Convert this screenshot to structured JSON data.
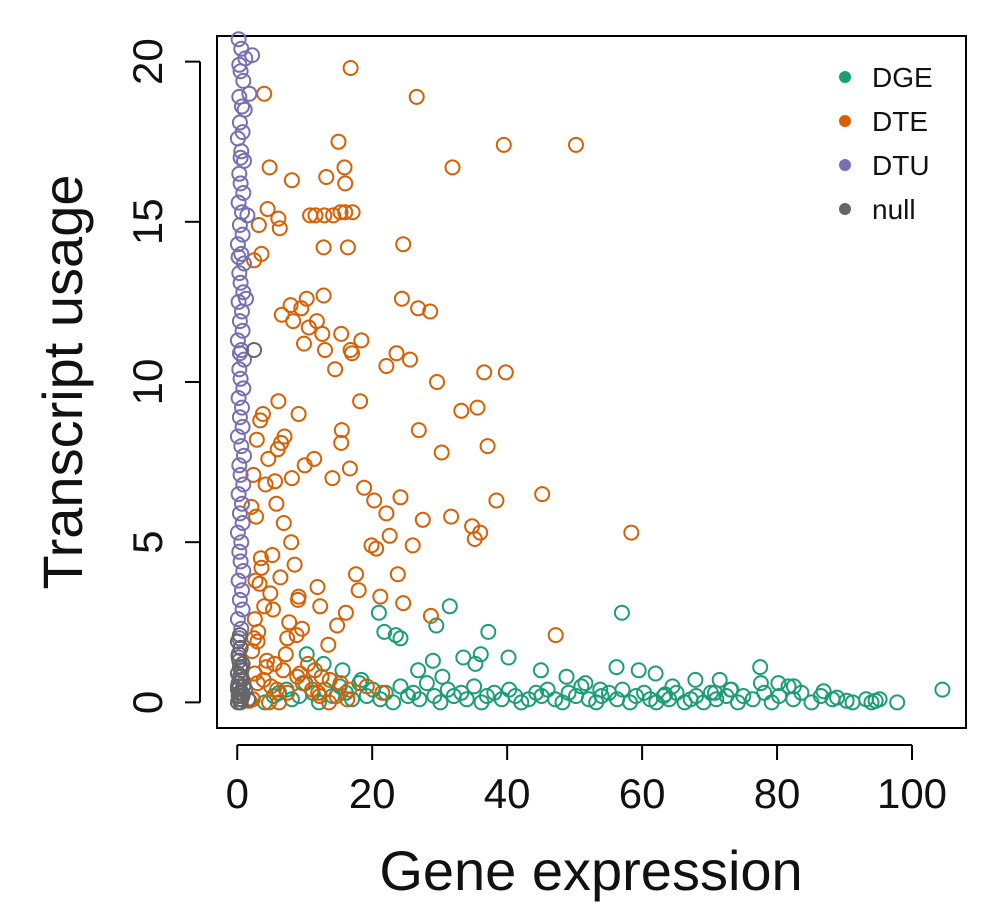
{
  "chart_data": {
    "type": "scatter",
    "title": "",
    "xlabel": "Gene expression",
    "ylabel": "Transcript usage",
    "xlim": [
      -3,
      108
    ],
    "ylim": [
      -0.8,
      20.8
    ],
    "xticks": [
      0,
      20,
      40,
      60,
      80,
      100
    ],
    "yticks": [
      0,
      5,
      10,
      15,
      20
    ],
    "xtick_labels": [
      "0",
      "20",
      "40",
      "60",
      "80",
      "100"
    ],
    "ytick_labels": [
      "0",
      "5",
      "10",
      "15",
      "20"
    ],
    "grid": false,
    "legend_position": "top-right",
    "series": [
      {
        "name": "DGE",
        "color": "#1b9e77",
        "marker": "open-circle",
        "x": [
          104.5,
          97.8,
          95.2,
          94.6,
          94.0,
          91.2,
          88.2,
          86.5,
          85.1,
          83.6,
          82.4,
          81.7,
          80.3,
          79.2,
          78.1,
          77.6,
          76.4,
          75.0,
          74.2,
          73.1,
          72.5,
          71.0,
          70.2,
          69.1,
          68.0,
          67.2,
          66.3,
          65.1,
          64.0,
          63.2,
          62.1,
          61.2,
          60.3,
          59.1,
          58.2,
          57.1,
          56.3,
          55.1,
          54.0,
          53.2,
          52.1,
          51.0,
          50.2,
          49.1,
          48.2,
          47.1,
          46.0,
          45.1,
          44.3,
          43.2,
          42.1,
          41.2,
          40.3,
          39.2,
          38.1,
          37.0,
          36.2,
          35.1,
          34.0,
          33.2,
          32.1,
          31.2,
          30.1,
          29.2,
          28.1,
          27.0,
          26.1,
          25.3,
          24.2,
          23.1,
          22.0,
          21.2,
          20.1,
          19.2,
          18.1,
          17.0,
          16.1,
          15.2,
          14.1,
          13.0,
          12.1,
          11.2,
          10.1,
          9.2,
          8.1,
          7.3,
          6.2,
          5.4,
          4.1,
          21.0,
          21.8,
          23.5,
          24.2,
          29.5,
          31.5,
          37.2,
          29.0,
          33.5,
          36.1,
          40.2,
          45.0,
          57.0,
          56.2,
          59.5,
          62.0,
          64.5,
          71.5,
          73.2,
          77.5,
          80.2,
          82.5,
          63.4,
          26.8,
          30.4,
          35.3,
          15.6,
          18.4,
          10.3,
          12.8,
          48.8,
          51.6,
          53.8,
          67.9,
          70.8,
          86.9,
          88.9,
          90.3,
          93.2
        ],
        "y": [
          0.4,
          0.0,
          0.1,
          0.05,
          0.0,
          0.0,
          0.1,
          0.2,
          0.0,
          0.3,
          0.1,
          0.5,
          0.2,
          0.0,
          0.3,
          0.6,
          0.1,
          0.2,
          0.0,
          0.4,
          0.2,
          0.1,
          0.3,
          0.0,
          0.2,
          0.1,
          0.0,
          0.3,
          0.1,
          0.2,
          0.0,
          0.1,
          0.3,
          0.2,
          0.0,
          0.4,
          0.1,
          0.3,
          0.2,
          0.0,
          0.1,
          0.5,
          0.2,
          0.3,
          0.0,
          0.1,
          0.4,
          0.2,
          0.3,
          0.1,
          0.0,
          0.2,
          0.4,
          0.1,
          0.3,
          0.2,
          0.0,
          0.5,
          0.1,
          0.3,
          0.2,
          0.4,
          0.0,
          0.2,
          0.6,
          0.1,
          0.3,
          0.2,
          0.5,
          0.0,
          0.3,
          0.1,
          0.4,
          0.2,
          0.6,
          0.1,
          0.3,
          0.5,
          0.2,
          0.4,
          0.0,
          0.3,
          0.6,
          0.2,
          0.1,
          0.4,
          0.3,
          0.2,
          0.0,
          2.8,
          2.2,
          2.1,
          2.0,
          2.4,
          3.0,
          2.2,
          1.3,
          1.4,
          1.5,
          1.4,
          1.0,
          2.8,
          1.1,
          1.0,
          0.9,
          0.5,
          0.7,
          0.4,
          1.1,
          0.6,
          0.5,
          0.25,
          1.0,
          0.8,
          1.2,
          1.0,
          0.7,
          1.5,
          1.2,
          0.8,
          0.6,
          0.4,
          0.7,
          0.3,
          0.35,
          0.15,
          0.05,
          0.1
        ]
      },
      {
        "name": "DTE",
        "color": "#d95f02",
        "marker": "open-circle",
        "x": [
          16.8,
          26.6,
          4.0,
          50.2,
          39.5,
          31.9,
          15.0,
          13.2,
          4.8,
          8.1,
          15.9,
          16.0,
          15.3,
          12.9,
          14.2,
          16.0,
          17.1,
          11.6,
          10.8,
          6.1,
          6.3,
          4.5,
          3.2,
          24.6,
          16.4,
          12.8,
          2.5,
          3.6,
          24.4,
          26.8,
          28.6,
          10.3,
          12.8,
          7.9,
          9.5,
          11.8,
          6.6,
          8.3,
          10.6,
          9.9,
          13.0,
          12.6,
          16.8,
          18.4,
          15.4,
          17.0,
          22.1,
          23.6,
          25.6,
          36.6,
          39.8,
          29.6,
          14.5,
          18.2,
          33.2,
          35.6,
          15.5,
          9.1,
          7.0,
          26.9,
          37.1,
          30.3,
          15.4,
          11.4,
          6.5,
          8.1,
          10.0,
          14.1,
          16.7,
          18.8,
          20.3,
          22.1,
          24.2,
          27.5,
          38.4,
          45.2,
          58.4,
          31.7,
          34.8,
          35.2,
          19.9,
          20.6,
          26.0,
          22.6,
          23.8,
          28.7,
          47.2,
          36.0,
          17.6,
          18.0,
          21.2,
          24.6,
          11.9,
          9.1,
          12.3,
          16.1,
          14.8,
          8.8,
          7.4,
          9.6,
          13.5,
          5.2,
          6.4,
          3.3,
          4.0,
          2.6,
          3.0,
          5.5,
          7.2,
          9.3,
          10.5,
          11.5,
          12.5,
          13.7,
          15.3,
          16.6,
          19.2,
          21.5,
          4.2,
          5.8,
          6.9,
          8.5,
          3.8,
          2.9,
          2.4,
          4.6,
          6.0,
          8.0,
          3.5,
          2.7,
          4.9,
          5.3,
          7.7,
          3.1,
          2.2,
          6.8,
          8.9,
          9.7,
          11.1,
          12.0,
          14.7,
          2.6,
          3.9,
          5.0,
          7.4,
          4.4,
          2.8,
          3.4,
          6.1,
          2.1,
          5.6,
          2.5,
          9.0,
          3.6,
          4.3,
          12.2,
          16.3,
          2.3,
          4.7,
          6.2,
          1.8,
          3.0,
          5.9,
          13.6
        ],
        "y": [
          19.8,
          18.9,
          19.0,
          17.4,
          17.4,
          16.7,
          17.5,
          16.4,
          16.7,
          16.3,
          16.7,
          16.2,
          15.3,
          15.2,
          15.2,
          15.3,
          15.3,
          15.2,
          15.2,
          15.1,
          14.8,
          15.4,
          14.9,
          14.3,
          14.2,
          14.2,
          13.8,
          14.0,
          12.6,
          12.3,
          12.2,
          12.6,
          12.7,
          12.4,
          12.3,
          11.9,
          12.1,
          11.9,
          11.7,
          11.2,
          11.0,
          11.5,
          11.0,
          11.3,
          11.5,
          10.9,
          10.5,
          10.9,
          10.7,
          10.3,
          10.3,
          10.0,
          10.4,
          9.4,
          9.1,
          9.2,
          8.5,
          9.0,
          8.3,
          8.5,
          8.0,
          7.8,
          8.1,
          7.6,
          8.1,
          7.0,
          7.4,
          7.0,
          7.3,
          6.7,
          6.3,
          5.9,
          6.4,
          5.7,
          6.3,
          6.5,
          5.3,
          5.8,
          5.5,
          5.1,
          4.9,
          4.8,
          4.9,
          5.2,
          4.0,
          2.7,
          2.1,
          5.3,
          4.0,
          3.5,
          3.3,
          3.1,
          3.6,
          3.3,
          3.0,
          2.8,
          2.4,
          2.1,
          2.0,
          2.3,
          1.8,
          4.6,
          3.9,
          3.7,
          3.0,
          2.6,
          1.9,
          1.2,
          1.5,
          0.9,
          1.2,
          1.0,
          0.8,
          0.7,
          0.6,
          0.4,
          0.5,
          0.3,
          6.8,
          6.2,
          5.6,
          4.3,
          9.0,
          8.2,
          7.1,
          7.6,
          7.9,
          5.0,
          4.5,
          3.8,
          3.4,
          2.9,
          2.5,
          2.2,
          1.6,
          1.0,
          0.8,
          0.6,
          0.4,
          0.3,
          0.2,
          0.9,
          0.7,
          0.5,
          0.3,
          1.3,
          5.8,
          8.8,
          9.4,
          6.1,
          6.9,
          2.0,
          3.2,
          4.2,
          1.1,
          0.2,
          0.1,
          0.1,
          0.0,
          0.0,
          0.05,
          0.6,
          0.4,
          0.0
        ]
      },
      {
        "name": "DTU",
        "color": "#7570b3",
        "marker": "open-circle",
        "x": [
          0.2,
          0.6,
          1.2,
          2.2,
          0.5,
          0.9,
          1.8,
          0.3,
          0.7,
          1.1,
          0.4,
          0.8,
          0.1,
          0.6,
          1.0,
          0.3,
          0.5,
          0.9,
          0.2,
          0.7,
          1.5,
          0.4,
          0.8,
          0.1,
          0.6,
          1.0,
          0.3,
          0.5,
          0.9,
          0.2,
          0.7,
          1.3,
          0.4,
          0.8,
          0.1,
          0.6,
          1.0,
          0.3,
          0.5,
          0.9,
          0.2,
          0.7,
          0.4,
          0.8,
          0.1,
          0.6,
          1.0,
          0.3,
          0.5,
          0.9,
          0.2,
          0.7,
          0.4,
          0.8,
          0.1,
          0.6,
          0.3,
          0.5,
          0.9,
          0.2,
          0.7,
          0.4,
          0.8,
          0.1,
          0.6,
          0.3,
          0.5,
          0.2,
          0.7,
          0.4,
          0.1,
          0.6,
          0.3,
          0.5,
          0.2,
          0.4
        ],
        "y": [
          20.7,
          20.4,
          20.1,
          20.2,
          19.7,
          19.4,
          19.0,
          18.9,
          18.6,
          18.5,
          18.1,
          17.8,
          17.6,
          17.2,
          16.9,
          16.5,
          16.2,
          15.9,
          15.6,
          15.3,
          15.2,
          14.9,
          14.6,
          14.3,
          14.0,
          13.7,
          13.4,
          13.1,
          12.8,
          12.5,
          12.2,
          12.6,
          11.9,
          11.6,
          11.3,
          11.0,
          10.7,
          10.4,
          10.1,
          9.8,
          9.5,
          9.2,
          8.9,
          8.6,
          8.3,
          8.0,
          7.7,
          7.4,
          7.1,
          6.8,
          6.5,
          6.2,
          5.9,
          5.6,
          5.3,
          5.0,
          4.7,
          4.4,
          4.1,
          3.8,
          3.5,
          3.2,
          2.9,
          2.6,
          2.3,
          2.0,
          1.7,
          1.4,
          1.1,
          0.8,
          0.5,
          0.3,
          19.9,
          17.0,
          13.9,
          10.9
        ]
      },
      {
        "name": "null",
        "color": "#666666",
        "marker": "open-circle",
        "x": [
          0.1,
          0.3,
          0.5,
          0.2,
          0.4,
          0.6,
          0.1,
          0.3,
          0.8,
          0.2,
          0.5,
          0.7,
          0.1,
          0.4,
          0.9,
          0.3,
          0.6,
          0.2,
          0.5,
          0.1,
          0.4,
          0.7,
          0.3,
          1.2,
          0.8,
          2.5,
          1.6
        ],
        "y": [
          0.0,
          0.1,
          0.0,
          0.2,
          0.3,
          0.1,
          0.4,
          0.5,
          0.2,
          0.6,
          0.8,
          0.3,
          0.9,
          1.1,
          0.5,
          1.3,
          1.0,
          1.5,
          1.7,
          1.9,
          2.1,
          0.7,
          0.2,
          0.4,
          1.2,
          11.0,
          0.1
        ]
      }
    ]
  }
}
